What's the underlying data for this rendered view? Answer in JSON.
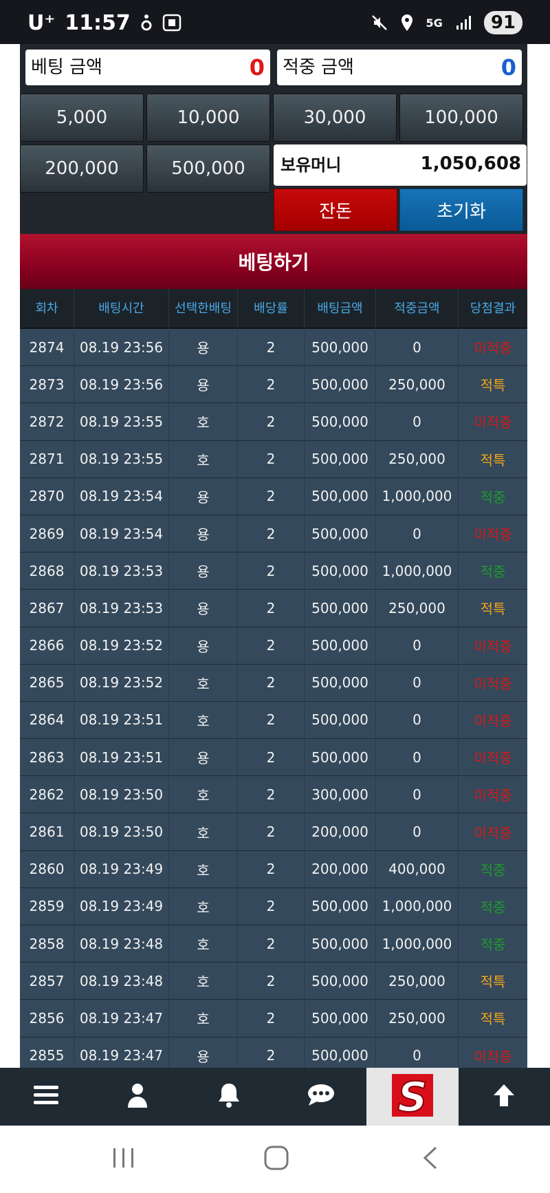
{
  "status_bar": {
    "carrier": "U⁺",
    "time": "11:57",
    "network": "5G",
    "battery": "91"
  },
  "summary": {
    "bet_label": "베팅 금액",
    "bet_value": "0",
    "bet_value_color": "#e01818",
    "hit_label": "적중 금액",
    "hit_value": "0",
    "hit_value_color": "#1b5fcf"
  },
  "chips": [
    "5,000",
    "10,000",
    "30,000",
    "100,000",
    "200,000",
    "500,000"
  ],
  "balance": {
    "label": "보유머니",
    "value": "1,050,608"
  },
  "buttons": {
    "change": "잔돈",
    "reset": "초기화",
    "bet": "베팅하기"
  },
  "table": {
    "headers": [
      "회차",
      "배팅시간",
      "선택한배팅",
      "배당률",
      "배팅금액",
      "적중금액",
      "당첨결과"
    ],
    "rows": [
      [
        "2874",
        "08.19 23:56",
        "용",
        "2",
        "500,000",
        "0",
        "미적중"
      ],
      [
        "2873",
        "08.19 23:56",
        "용",
        "2",
        "500,000",
        "250,000",
        "적특"
      ],
      [
        "2872",
        "08.19 23:55",
        "호",
        "2",
        "500,000",
        "0",
        "미적중"
      ],
      [
        "2871",
        "08.19 23:55",
        "호",
        "2",
        "500,000",
        "250,000",
        "적특"
      ],
      [
        "2870",
        "08.19 23:54",
        "용",
        "2",
        "500,000",
        "1,000,000",
        "적중"
      ],
      [
        "2869",
        "08.19 23:54",
        "용",
        "2",
        "500,000",
        "0",
        "미적중"
      ],
      [
        "2868",
        "08.19 23:53",
        "용",
        "2",
        "500,000",
        "1,000,000",
        "적중"
      ],
      [
        "2867",
        "08.19 23:53",
        "용",
        "2",
        "500,000",
        "250,000",
        "적특"
      ],
      [
        "2866",
        "08.19 23:52",
        "용",
        "2",
        "500,000",
        "0",
        "미적중"
      ],
      [
        "2865",
        "08.19 23:52",
        "호",
        "2",
        "500,000",
        "0",
        "미적중"
      ],
      [
        "2864",
        "08.19 23:51",
        "호",
        "2",
        "500,000",
        "0",
        "미적중"
      ],
      [
        "2863",
        "08.19 23:51",
        "용",
        "2",
        "500,000",
        "0",
        "미적중"
      ],
      [
        "2862",
        "08.19 23:50",
        "호",
        "2",
        "300,000",
        "0",
        "미적중"
      ],
      [
        "2861",
        "08.19 23:50",
        "호",
        "2",
        "200,000",
        "0",
        "미적중"
      ],
      [
        "2860",
        "08.19 23:49",
        "호",
        "2",
        "200,000",
        "400,000",
        "적중"
      ],
      [
        "2859",
        "08.19 23:49",
        "호",
        "2",
        "500,000",
        "1,000,000",
        "적중"
      ],
      [
        "2858",
        "08.19 23:48",
        "호",
        "2",
        "500,000",
        "1,000,000",
        "적중"
      ],
      [
        "2857",
        "08.19 23:48",
        "호",
        "2",
        "500,000",
        "250,000",
        "적특"
      ],
      [
        "2856",
        "08.19 23:47",
        "호",
        "2",
        "500,000",
        "250,000",
        "적특"
      ],
      [
        "2855",
        "08.19 23:47",
        "용",
        "2",
        "500,000",
        "0",
        "미적중"
      ]
    ]
  },
  "bottom_nav": {
    "items": [
      "menu-icon",
      "user-icon",
      "bell-icon",
      "chat-icon",
      "logo",
      "arrow-up-icon"
    ],
    "logo_letter": "S"
  }
}
